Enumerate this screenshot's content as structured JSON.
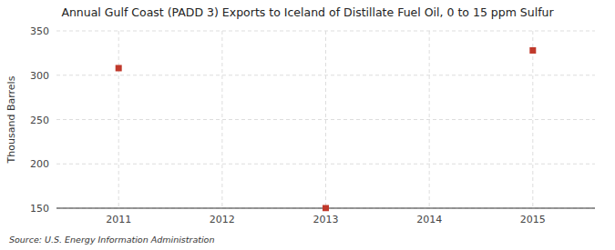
{
  "chart_data": {
    "type": "scatter",
    "title": "Annual Gulf Coast (PADD 3) Exports to Iceland of Distillate Fuel Oil, 0 to 15 ppm Sulfur",
    "ylabel": "Thousand Barrels",
    "source": "Source: U.S. Energy Information Administration",
    "x": [
      2011,
      2013,
      2015
    ],
    "values": [
      308,
      150,
      328
    ],
    "color": "#c0392b",
    "marker": "square",
    "xlim": [
      2010.4,
      2015.6
    ],
    "ylim": [
      150,
      350
    ],
    "xticks": [
      2011,
      2012,
      2013,
      2014,
      2015
    ],
    "yticks": [
      150,
      200,
      250,
      300,
      350
    ],
    "grid": true
  }
}
